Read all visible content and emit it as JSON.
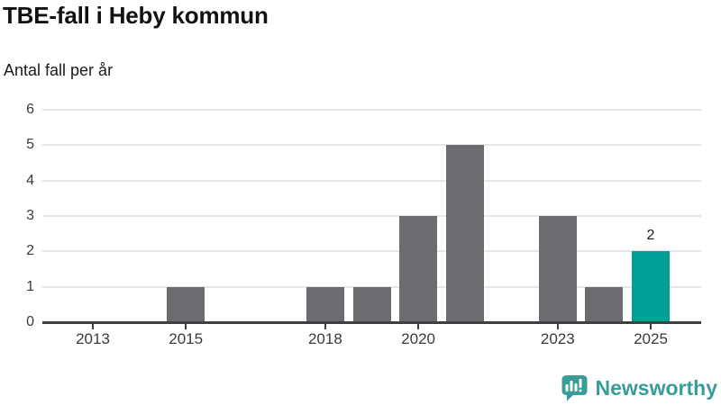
{
  "header": {
    "title": "TBE-fall i Heby kommun",
    "subtitle": "Antal fall per år"
  },
  "chart_data": {
    "type": "bar",
    "title": "TBE-fall i Heby kommun",
    "ylabel": "Antal fall per år",
    "categories": [
      2013,
      2014,
      2015,
      2016,
      2017,
      2018,
      2019,
      2020,
      2021,
      2022,
      2023,
      2024,
      2025
    ],
    "values": [
      0,
      0,
      1,
      0,
      0,
      1,
      1,
      3,
      5,
      0,
      3,
      1,
      2
    ],
    "x_tick_labels": [
      "2013",
      "2015",
      "2018",
      "2020",
      "2023",
      "2025"
    ],
    "y_ticks": [
      0,
      1,
      2,
      3,
      4,
      5,
      6
    ],
    "ylim": [
      0,
      6
    ],
    "grid": "horizontal",
    "legend": "none",
    "bar_color": "#6b6b70",
    "gridline_color": "#e6e6e6",
    "axis_color": "#3f3f42",
    "highlight": {
      "category": 2025,
      "value": 2,
      "color": "#00a096",
      "label": "2"
    }
  },
  "branding": {
    "logo_text": "Newsworthy",
    "logo_color": "#3a9c96",
    "logo_icon": "bar-chart-speech-bubble-icon"
  }
}
